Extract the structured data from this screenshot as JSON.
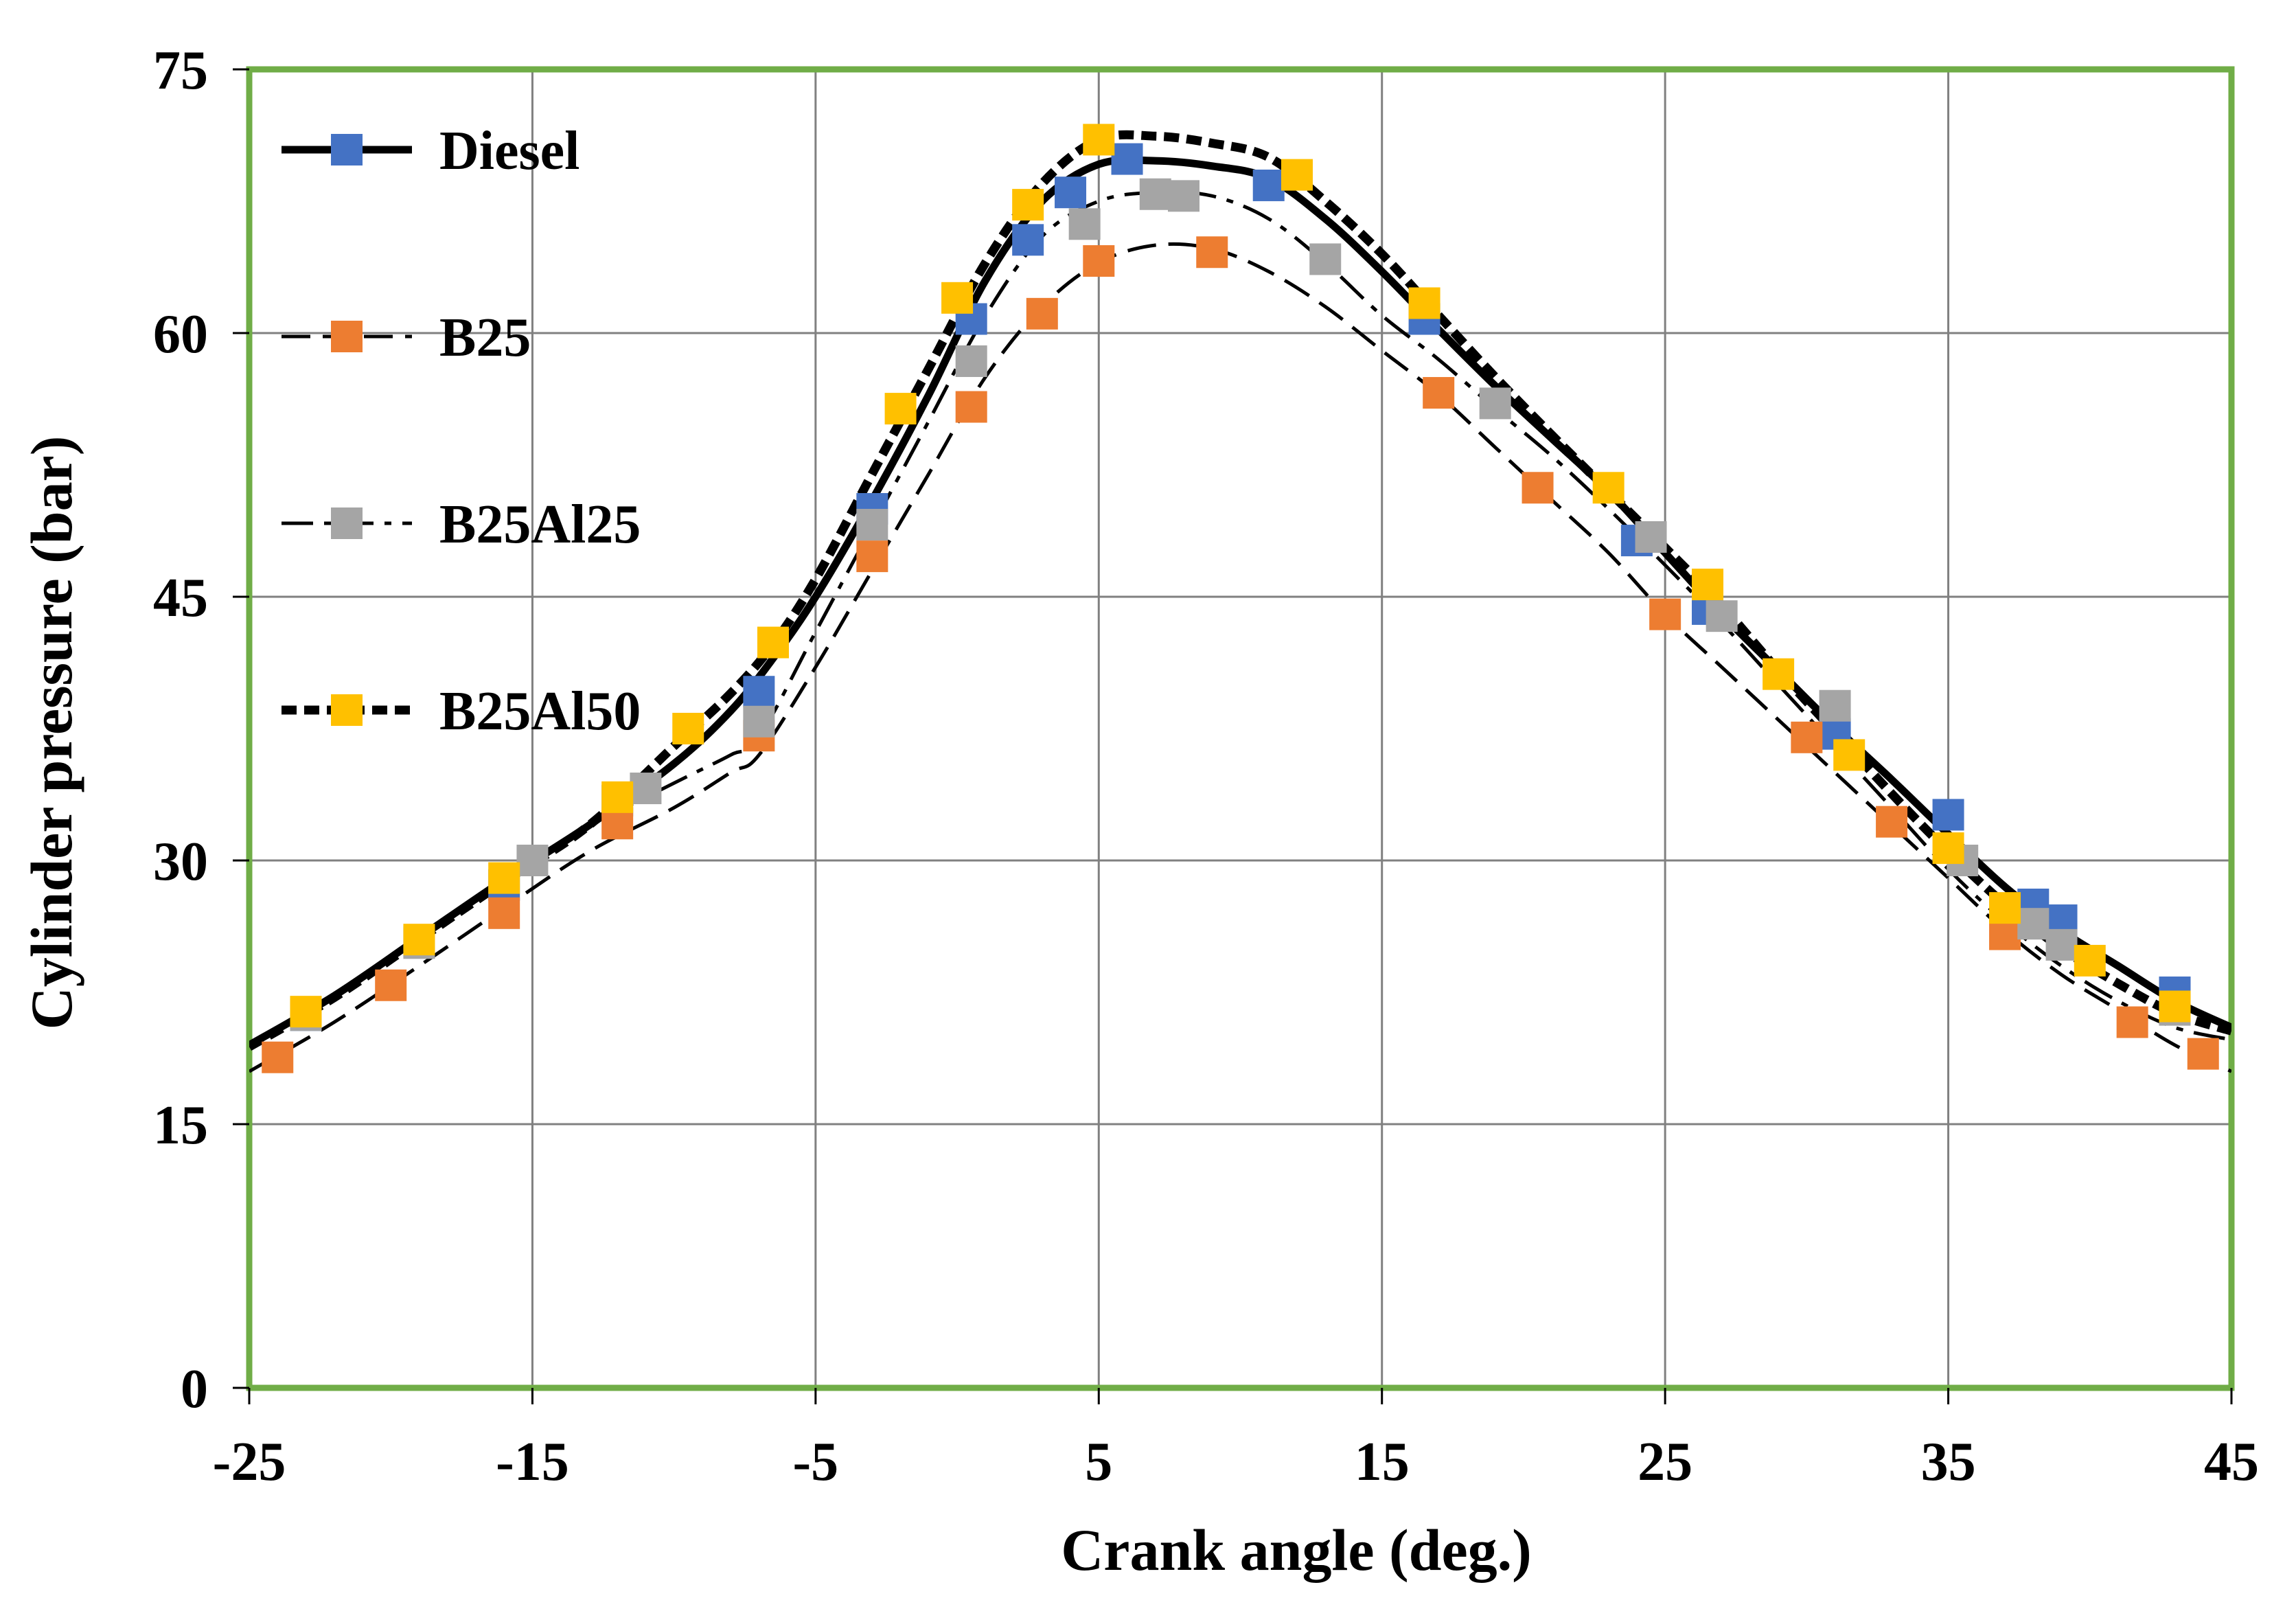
{
  "chart_data": {
    "type": "line",
    "title": "",
    "xlabel": "Crank angle (deg.)",
    "ylabel": "Cylinder pressure (bar)",
    "xlim": [
      -25,
      45
    ],
    "ylim": [
      0,
      75
    ],
    "x_ticks": [
      -25,
      -15,
      -5,
      5,
      15,
      25,
      35,
      45
    ],
    "y_ticks": [
      0,
      15,
      30,
      45,
      60,
      75
    ],
    "x_tick_labels": [
      "-25",
      "-15",
      "-5",
      "5",
      "15",
      "25",
      "35",
      "45"
    ],
    "y_tick_labels": [
      "0",
      "15",
      "30",
      "45",
      "60",
      "75"
    ],
    "grid": true,
    "legend_position": "top-left",
    "colors": {
      "plot_border": "#70ad47",
      "grid": "#808080",
      "line": "#000000"
    },
    "series": [
      {
        "name": "Diesel",
        "line_style": "solid",
        "marker_color": "#4472c4",
        "curve": [
          [
            -25,
            19.5
          ],
          [
            -22,
            22.3
          ],
          [
            -19,
            25.6
          ],
          [
            -16,
            28.9
          ],
          [
            -13,
            32.0
          ],
          [
            -10,
            35.5
          ],
          [
            -8,
            38.5
          ],
          [
            -6.5,
            41.5
          ],
          [
            -5,
            45.0
          ],
          [
            -3,
            50.5
          ],
          [
            -1,
            56.5
          ],
          [
            1,
            63.0
          ],
          [
            3,
            67.5
          ],
          [
            5,
            69.6
          ],
          [
            7,
            69.8
          ],
          [
            9,
            69.5
          ],
          [
            11,
            68.8
          ],
          [
            13,
            66.5
          ],
          [
            15,
            63.5
          ],
          [
            17,
            60.2
          ],
          [
            19,
            57.0
          ],
          [
            21,
            54.0
          ],
          [
            23,
            51.0
          ],
          [
            25,
            47.5
          ],
          [
            27,
            44.0
          ],
          [
            29,
            40.8
          ],
          [
            31,
            37.6
          ],
          [
            33,
            34.6
          ],
          [
            35,
            31.5
          ],
          [
            37,
            28.5
          ],
          [
            39,
            26.0
          ],
          [
            41,
            24.0
          ],
          [
            43,
            22.0
          ],
          [
            45,
            20.5
          ]
        ],
        "markers": [
          [
            -23,
            21.2
          ],
          [
            -19,
            25.4
          ],
          [
            -16,
            28.6
          ],
          [
            -12,
            33.4
          ],
          [
            -7,
            39.6
          ],
          [
            -3,
            50.0
          ],
          [
            0.5,
            60.8
          ],
          [
            2.5,
            65.3
          ],
          [
            4,
            68.0
          ],
          [
            6,
            69.9
          ],
          [
            11,
            68.4
          ],
          [
            16.5,
            60.8
          ],
          [
            24,
            48.2
          ],
          [
            26.5,
            44.3
          ],
          [
            31,
            37.2
          ],
          [
            35,
            32.6
          ],
          [
            38,
            27.5
          ],
          [
            39,
            26.6
          ],
          [
            43,
            22.5
          ]
        ]
      },
      {
        "name": "B25",
        "line_style": "dashed",
        "marker_color": "#ed7d31",
        "curve": [
          [
            -25,
            18.0
          ],
          [
            -22,
            20.8
          ],
          [
            -19,
            24.0
          ],
          [
            -16,
            27.3
          ],
          [
            -13,
            30.5
          ],
          [
            -10,
            33.0
          ],
          [
            -8,
            35.0
          ],
          [
            -7,
            36.0
          ],
          [
            -5,
            41.0
          ],
          [
            -3,
            46.5
          ],
          [
            -1,
            52.0
          ],
          [
            1,
            57.5
          ],
          [
            3,
            61.5
          ],
          [
            5,
            64.0
          ],
          [
            7,
            65.0
          ],
          [
            9,
            64.8
          ],
          [
            11,
            63.5
          ],
          [
            13,
            61.5
          ],
          [
            15,
            59.0
          ],
          [
            17,
            56.5
          ],
          [
            19,
            53.5
          ],
          [
            21,
            50.5
          ],
          [
            23,
            47.5
          ],
          [
            25,
            44.0
          ],
          [
            27,
            41.0
          ],
          [
            29,
            38.0
          ],
          [
            31,
            35.0
          ],
          [
            33,
            32.0
          ],
          [
            35,
            29.0
          ],
          [
            37,
            26.0
          ],
          [
            39,
            23.5
          ],
          [
            41,
            21.5
          ],
          [
            43,
            19.5
          ],
          [
            45,
            18.0
          ]
        ],
        "markers": [
          [
            -24,
            18.8
          ],
          [
            -20,
            22.9
          ],
          [
            -16,
            27.0
          ],
          [
            -12,
            32.1
          ],
          [
            -7,
            37.1
          ],
          [
            -3,
            47.3
          ],
          [
            0.5,
            55.8
          ],
          [
            3,
            61.1
          ],
          [
            5,
            64.1
          ],
          [
            9,
            64.6
          ],
          [
            17,
            56.6
          ],
          [
            20.5,
            51.2
          ],
          [
            25,
            44.0
          ],
          [
            30,
            37.0
          ],
          [
            33,
            32.2
          ],
          [
            37,
            25.8
          ],
          [
            41.5,
            20.8
          ],
          [
            44,
            19.0
          ]
        ]
      },
      {
        "name": "B25Al25",
        "line_style": "dashdot",
        "marker_color": "#a5a5a5",
        "curve": [
          [
            -25,
            19.4
          ],
          [
            -22,
            22.2
          ],
          [
            -19,
            25.5
          ],
          [
            -16,
            28.8
          ],
          [
            -13,
            31.9
          ],
          [
            -10,
            34.4
          ],
          [
            -8,
            36.0
          ],
          [
            -7,
            37.0
          ],
          [
            -5,
            43.0
          ],
          [
            -3,
            49.0
          ],
          [
            -1,
            55.0
          ],
          [
            1,
            61.0
          ],
          [
            3,
            65.5
          ],
          [
            5,
            67.5
          ],
          [
            7,
            68.0
          ],
          [
            9,
            67.8
          ],
          [
            11,
            66.5
          ],
          [
            13,
            64.0
          ],
          [
            15,
            61.0
          ],
          [
            17,
            58.5
          ],
          [
            19,
            55.7
          ],
          [
            21,
            53.0
          ],
          [
            23,
            50.0
          ],
          [
            25,
            46.8
          ],
          [
            27,
            43.5
          ],
          [
            29,
            40.0
          ],
          [
            31,
            36.5
          ],
          [
            33,
            33.0
          ],
          [
            35,
            29.5
          ],
          [
            37,
            26.5
          ],
          [
            39,
            24.0
          ],
          [
            41,
            22.0
          ],
          [
            43,
            20.5
          ],
          [
            45,
            19.8
          ]
        ],
        "markers": [
          [
            -23,
            21.2
          ],
          [
            -19,
            25.3
          ],
          [
            -15,
            30.0
          ],
          [
            -11,
            34.1
          ],
          [
            -7,
            37.9
          ],
          [
            -3,
            49.1
          ],
          [
            0.5,
            58.4
          ],
          [
            4.5,
            66.2
          ],
          [
            7,
            67.9
          ],
          [
            8,
            67.8
          ],
          [
            13,
            64.2
          ],
          [
            19,
            56.0
          ],
          [
            24.5,
            48.4
          ],
          [
            27,
            43.9
          ],
          [
            31,
            38.8
          ],
          [
            35.5,
            30.0
          ],
          [
            38,
            26.4
          ],
          [
            39,
            25.2
          ],
          [
            43,
            21.5
          ]
        ]
      },
      {
        "name": "B25Al50",
        "line_style": "dotted",
        "marker_color": "#ffc000",
        "curve": [
          [
            -25,
            19.4
          ],
          [
            -22,
            22.2
          ],
          [
            -19,
            25.5
          ],
          [
            -16,
            28.8
          ],
          [
            -13,
            32.0
          ],
          [
            -10,
            36.5
          ],
          [
            -8,
            39.5
          ],
          [
            -6.5,
            42.3
          ],
          [
            -5,
            46.0
          ],
          [
            -3,
            52.0
          ],
          [
            -1,
            58.0
          ],
          [
            1,
            64.0
          ],
          [
            3,
            68.5
          ],
          [
            5,
            71.0
          ],
          [
            7,
            71.2
          ],
          [
            9,
            70.8
          ],
          [
            11,
            70.0
          ],
          [
            13,
            67.5
          ],
          [
            15,
            64.5
          ],
          [
            17,
            61.0
          ],
          [
            19,
            57.5
          ],
          [
            21,
            54.2
          ],
          [
            23,
            51.0
          ],
          [
            25,
            47.8
          ],
          [
            27,
            44.5
          ],
          [
            29,
            40.8
          ],
          [
            31,
            37.3
          ],
          [
            33,
            33.8
          ],
          [
            35,
            30.5
          ],
          [
            37,
            27.5
          ],
          [
            39,
            25.0
          ],
          [
            41,
            23.0
          ],
          [
            43,
            21.3
          ],
          [
            45,
            20.3
          ]
        ],
        "markers": [
          [
            -23,
            21.4
          ],
          [
            -19,
            25.5
          ],
          [
            -16,
            29.0
          ],
          [
            -12,
            33.6
          ],
          [
            -9.5,
            37.5
          ],
          [
            -6.5,
            42.4
          ],
          [
            -2,
            55.7
          ],
          [
            0,
            62.0
          ],
          [
            2.5,
            67.3
          ],
          [
            5,
            71.0
          ],
          [
            12,
            69.0
          ],
          [
            16.5,
            61.7
          ],
          [
            23,
            51.2
          ],
          [
            26.5,
            45.7
          ],
          [
            29,
            40.6
          ],
          [
            31.5,
            36.0
          ],
          [
            35,
            30.7
          ],
          [
            37,
            27.3
          ],
          [
            40,
            24.3
          ],
          [
            43,
            21.7
          ]
        ]
      }
    ]
  }
}
